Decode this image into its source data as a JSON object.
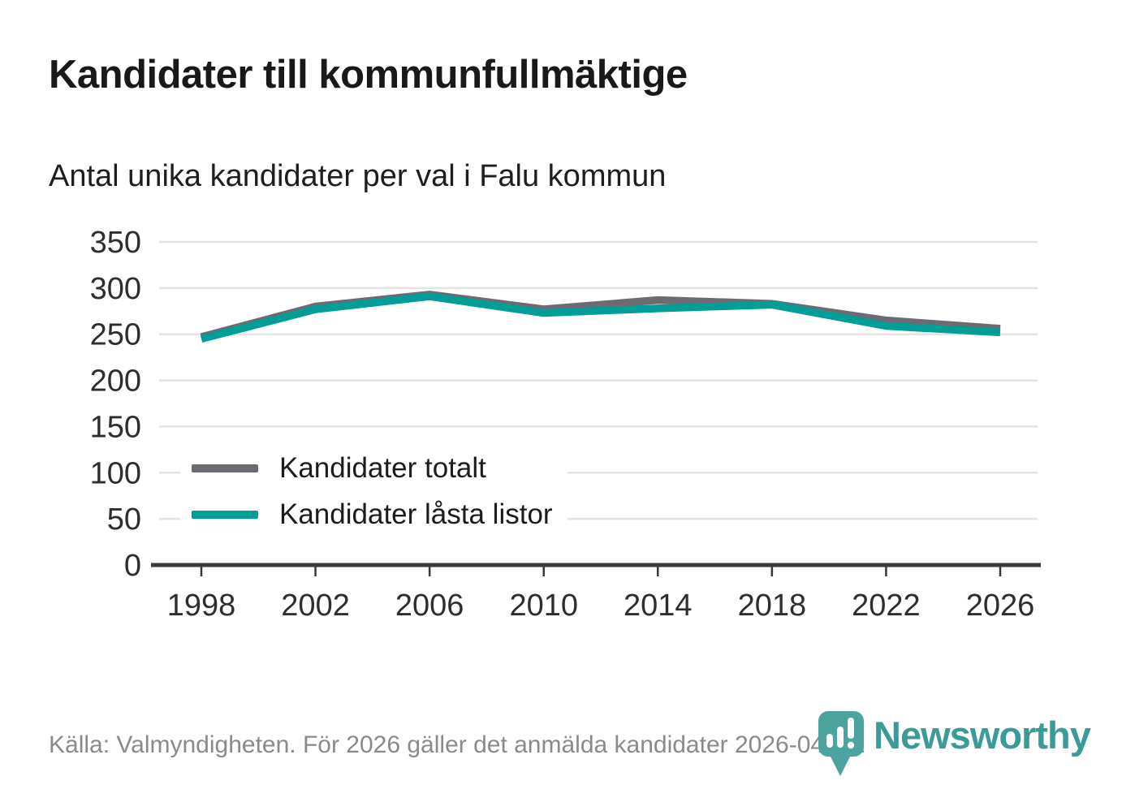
{
  "header": {
    "title": "Kandidater till kommunfullmäktige",
    "subtitle": "Antal unika kandidater per val i Falu kommun"
  },
  "chart_data": {
    "type": "line",
    "x": [
      1998,
      2002,
      2006,
      2010,
      2014,
      2018,
      2022,
      2026
    ],
    "series": [
      {
        "name": "Kandidater totalt",
        "color": "#6e6a71",
        "values": [
          247,
          280,
          293,
          277,
          287,
          283,
          265,
          256
        ]
      },
      {
        "name": "Kandidater låsta listor",
        "color": "#009e97",
        "values": [
          245,
          277,
          291,
          273,
          278,
          282,
          259,
          252
        ]
      }
    ],
    "title": "Kandidater till kommunfullmäktige",
    "subtitle": "Antal unika kandidater per val i Falu kommun",
    "xlabel": "",
    "ylabel": "",
    "ylim": [
      0,
      350
    ],
    "yticks": [
      0,
      50,
      100,
      150,
      200,
      250,
      300,
      350
    ],
    "grid": true,
    "legend_position": "inside-left"
  },
  "footer": {
    "source": "Källa: Valmyndigheten. För 2026 gäller det anmälda kandidater 2026-04-10."
  },
  "brand": {
    "name": "Newsworthy",
    "icon": "bar-chart-speech-pin-icon",
    "icon_color": "#4ba59e",
    "word_color": "#3b9c97"
  },
  "colors": {
    "grid": "#e3e3e3",
    "axis": "#3a3a3a",
    "tick_label": "#2e2e2e",
    "footer_text": "#8a8a8a"
  }
}
